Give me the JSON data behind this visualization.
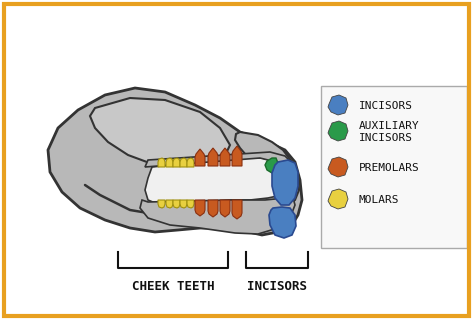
{
  "bg_color": "#ffffff",
  "border_color": "#e8a020",
  "skull_color": "#b8b8b8",
  "skull_outline": "#333333",
  "skull_inner_color": "#a8a8a8",
  "incisors_color": "#4a7fc1",
  "aux_incisors_color": "#2a9a4a",
  "premolars_color": "#c85a20",
  "molars_color": "#e8d040",
  "legend_items": [
    {
      "label": "INCISORS",
      "color": "#4a7fc1"
    },
    {
      "label": "AUXILIARY\nINCISORS",
      "color": "#2a9a4a"
    },
    {
      "label": "PREMOLARS",
      "color": "#c85a20"
    },
    {
      "label": "MOLARS",
      "color": "#e8d040"
    }
  ],
  "label_cheek": "CHEEK TEETH",
  "label_incisors": "INCISORS",
  "text_color": "#111111",
  "label_fontsize": 9,
  "legend_fontsize": 8
}
